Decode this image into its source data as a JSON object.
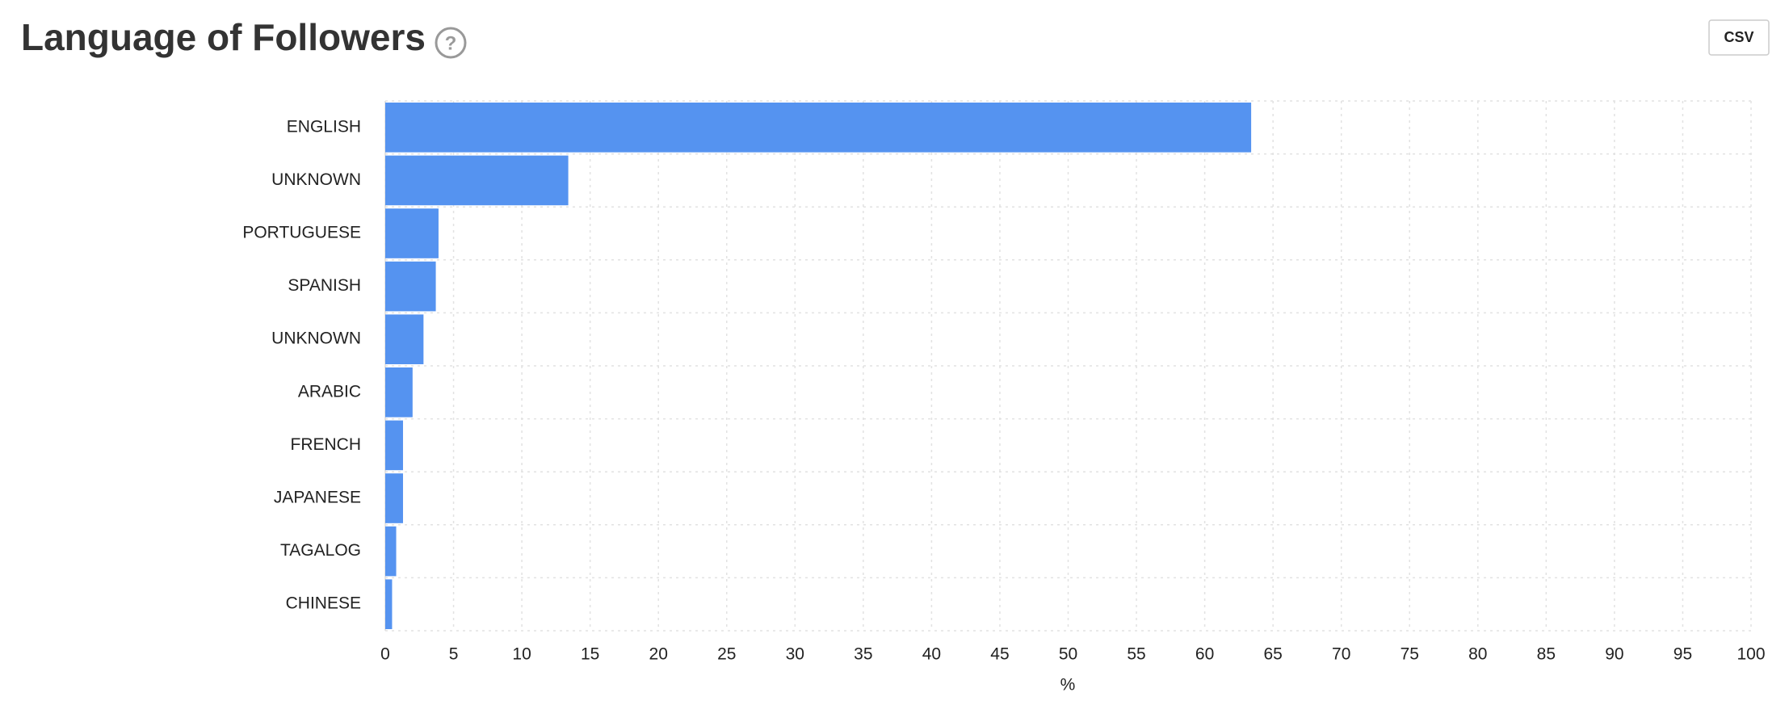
{
  "chart_data": {
    "type": "hbar",
    "title": "Language of Followers",
    "x_label": "%",
    "categories": [
      "ENGLISH",
      "UNKNOWN",
      "PORTUGUESE",
      "SPANISH",
      "UNKNOWN",
      "ARABIC",
      "FRENCH",
      "JAPANESE",
      "TAGALOG",
      "CHINESE"
    ],
    "values": [
      63.4,
      13.4,
      3.9,
      3.7,
      2.8,
      2.0,
      1.3,
      1.3,
      0.8,
      0.5
    ],
    "color": "#5593f0",
    "xlim": [
      0,
      100
    ],
    "xticks": [
      0,
      5,
      10,
      15,
      20,
      25,
      30,
      35,
      40,
      45,
      50,
      55,
      60,
      65,
      70,
      75,
      80,
      85,
      90,
      95,
      100
    ],
    "grid": true
  },
  "toolbar": {
    "help_icon": "?",
    "export_button": "CSV"
  }
}
